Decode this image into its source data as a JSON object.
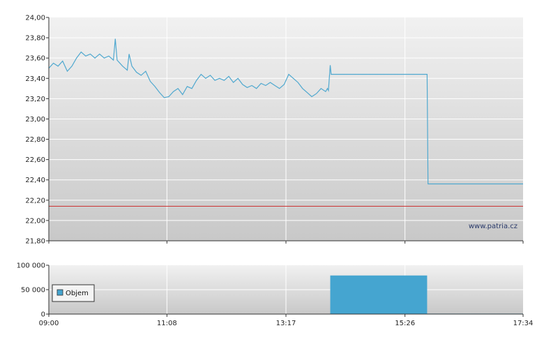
{
  "watermark": "www.patria.cz",
  "legend": {
    "label": "Objem"
  },
  "colors": {
    "price_line": "#4fa8cf",
    "reference_line": "#cc3333",
    "volume_bar": "#45a5d0"
  },
  "chart_data": [
    {
      "type": "line",
      "x_unit": "time",
      "ylim": [
        21.8,
        24.0
      ],
      "y_ticks": [
        "24,00",
        "23,80",
        "23,60",
        "23,40",
        "23,20",
        "23,00",
        "22,80",
        "22,60",
        "22,40",
        "22,20",
        "22,00",
        "21,80"
      ],
      "reference_line": 22.14,
      "grid": true,
      "series": [
        {
          "points": [
            [
              "09:00",
              23.5
            ],
            [
              "09:05",
              23.55
            ],
            [
              "09:10",
              23.52
            ],
            [
              "09:15",
              23.57
            ],
            [
              "09:20",
              23.47
            ],
            [
              "09:25",
              23.52
            ],
            [
              "09:30",
              23.6
            ],
            [
              "09:35",
              23.66
            ],
            [
              "09:40",
              23.62
            ],
            [
              "09:45",
              23.64
            ],
            [
              "09:50",
              23.6
            ],
            [
              "09:55",
              23.64
            ],
            [
              "10:00",
              23.6
            ],
            [
              "10:05",
              23.62
            ],
            [
              "10:10",
              23.58
            ],
            [
              "10:12",
              23.79
            ],
            [
              "10:14",
              23.58
            ],
            [
              "10:20",
              23.52
            ],
            [
              "10:25",
              23.48
            ],
            [
              "10:27",
              23.64
            ],
            [
              "10:30",
              23.52
            ],
            [
              "10:35",
              23.46
            ],
            [
              "10:40",
              23.43
            ],
            [
              "10:45",
              23.47
            ],
            [
              "10:50",
              23.37
            ],
            [
              "10:55",
              23.32
            ],
            [
              "11:00",
              23.26
            ],
            [
              "11:05",
              23.21
            ],
            [
              "11:10",
              23.22
            ],
            [
              "11:15",
              23.27
            ],
            [
              "11:20",
              23.3
            ],
            [
              "11:25",
              23.24
            ],
            [
              "11:30",
              23.32
            ],
            [
              "11:35",
              23.3
            ],
            [
              "11:40",
              23.38
            ],
            [
              "11:45",
              23.44
            ],
            [
              "11:50",
              23.4
            ],
            [
              "11:55",
              23.43
            ],
            [
              "12:00",
              23.38
            ],
            [
              "12:05",
              23.4
            ],
            [
              "12:10",
              23.38
            ],
            [
              "12:15",
              23.42
            ],
            [
              "12:20",
              23.36
            ],
            [
              "12:25",
              23.4
            ],
            [
              "12:30",
              23.34
            ],
            [
              "12:35",
              23.31
            ],
            [
              "12:40",
              23.33
            ],
            [
              "12:45",
              23.3
            ],
            [
              "12:50",
              23.35
            ],
            [
              "12:55",
              23.33
            ],
            [
              "13:00",
              23.36
            ],
            [
              "13:05",
              23.33
            ],
            [
              "13:10",
              23.3
            ],
            [
              "13:15",
              23.34
            ],
            [
              "13:20",
              23.44
            ],
            [
              "13:25",
              23.4
            ],
            [
              "13:30",
              23.36
            ],
            [
              "13:35",
              23.3
            ],
            [
              "13:40",
              23.26
            ],
            [
              "13:45",
              23.22
            ],
            [
              "13:50",
              23.25
            ],
            [
              "13:55",
              23.3
            ],
            [
              "14:00",
              23.27
            ],
            [
              "14:02",
              23.3
            ],
            [
              "14:03",
              23.28
            ],
            [
              "14:05",
              23.53
            ],
            [
              "14:06",
              23.44
            ],
            [
              "15:50",
              23.44
            ],
            [
              "15:51",
              22.36
            ],
            [
              "17:34",
              22.36
            ]
          ]
        }
      ]
    },
    {
      "type": "bar",
      "x_unit": "time",
      "ylim": [
        0,
        100000
      ],
      "y_ticks": [
        "100 000",
        "50 000",
        "0"
      ],
      "x_ticks": [
        "09:00",
        "11:08",
        "13:17",
        "15:26",
        "17:34"
      ],
      "series": [
        {
          "name": "Objem",
          "bars": [
            {
              "x_start": "14:05",
              "x_end": "15:50",
              "value": 79000
            },
            {
              "x_start": "15:50",
              "x_end": "17:34",
              "value": 900
            }
          ]
        }
      ]
    }
  ]
}
